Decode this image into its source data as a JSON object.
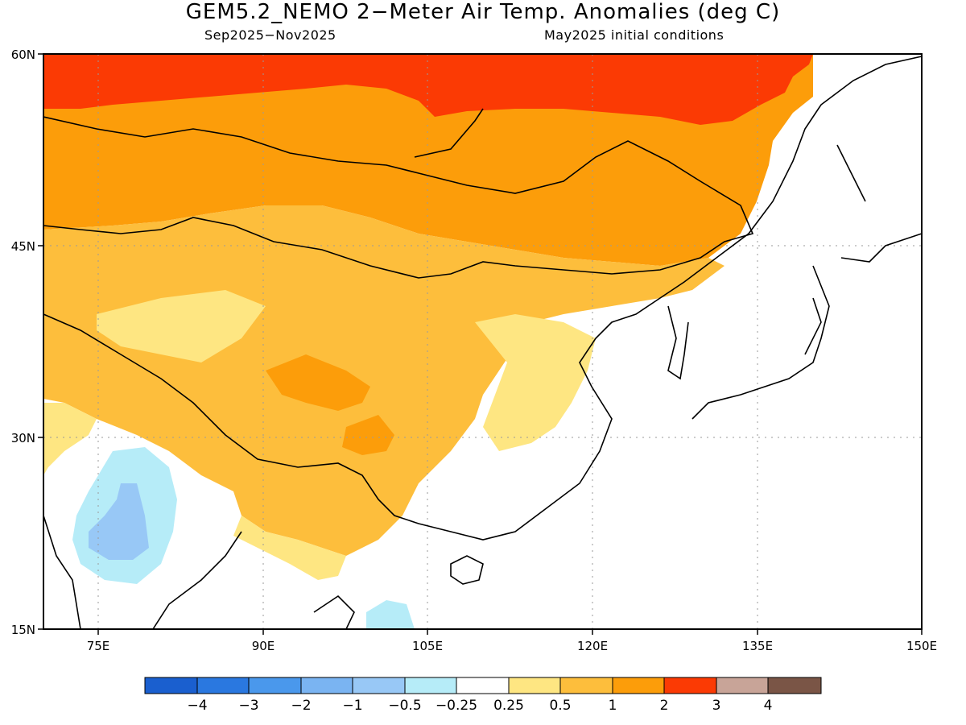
{
  "header": {
    "title": "GEM5.2_NEMO 2−Meter Air Temp. Anomalies (deg C)",
    "period": "Sep2025−Nov2025",
    "init": "May2025 initial conditions"
  },
  "map": {
    "lat_labels": [
      "60N",
      "45N",
      "30N",
      "15N"
    ],
    "lon_labels": [
      "75E",
      "90E",
      "105E",
      "120E",
      "135E",
      "150E"
    ],
    "lat_values": [
      60,
      45,
      30,
      15
    ],
    "lon_values": [
      75,
      90,
      105,
      120,
      135,
      150
    ],
    "lon_range": [
      70,
      150
    ],
    "lat_range": [
      15,
      60
    ],
    "grid": "dotted"
  },
  "colorbar": {
    "labels": [
      "−4",
      "−3",
      "−2",
      "−1",
      "−0.5",
      "−0.25",
      "0.25",
      "0.5",
      "1",
      "2",
      "3",
      "4"
    ],
    "colors": [
      "#1a5fcf",
      "#2a78e0",
      "#4a98ec",
      "#7ab4f2",
      "#98c8f6",
      "#b6ecf8",
      "#ffffff",
      "#fee682",
      "#fdbe3c",
      "#fc9d0a",
      "#fb3a04",
      "#c8a498",
      "#7a5546"
    ]
  },
  "legend_colors": {
    "lt_neg05": "#b6ecf8",
    "lt_neg1": "#98c8f6",
    "gt_025": "#fee682",
    "gt_05": "#fdbe3c",
    "gt_1": "#fc9d0a",
    "gt_2": "#fb3a04"
  }
}
